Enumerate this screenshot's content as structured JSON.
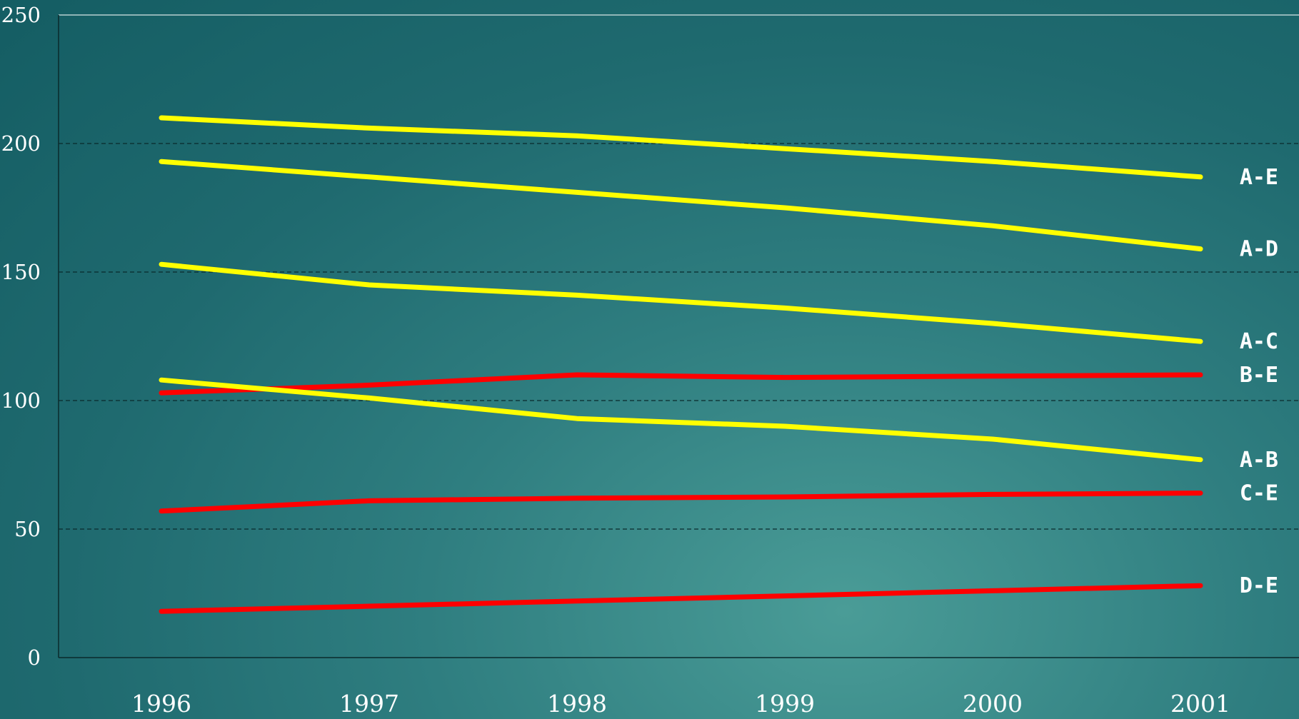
{
  "chart_data": {
    "type": "line",
    "title": "",
    "xlabel": "",
    "ylabel": "",
    "ylim": [
      0,
      250
    ],
    "yticks": [
      0,
      50,
      100,
      150,
      200,
      250
    ],
    "x": [
      "1996",
      "1997",
      "1998",
      "1999",
      "2000",
      "2001"
    ],
    "grid": "horizontal dashed",
    "series": [
      {
        "name": "A-E",
        "color": "#ffff00",
        "values": [
          210,
          206,
          203,
          198,
          193,
          187
        ]
      },
      {
        "name": "A-D",
        "color": "#ffff00",
        "values": [
          193,
          187,
          181,
          175,
          168,
          159
        ]
      },
      {
        "name": "A-C",
        "color": "#ffff00",
        "values": [
          153,
          145,
          141,
          136,
          130,
          123
        ]
      },
      {
        "name": "B-E",
        "color": "#ff0000",
        "values": [
          103,
          106,
          110,
          109,
          109.5,
          110
        ]
      },
      {
        "name": "A-B",
        "color": "#ffff00",
        "values": [
          108,
          101,
          93,
          90,
          85,
          77
        ]
      },
      {
        "name": "C-E",
        "color": "#ff0000",
        "values": [
          57,
          61,
          62,
          62.5,
          63.5,
          64
        ]
      },
      {
        "name": "D-E",
        "color": "#ff0000",
        "values": [
          18,
          20,
          22,
          24,
          26,
          28
        ]
      }
    ]
  }
}
